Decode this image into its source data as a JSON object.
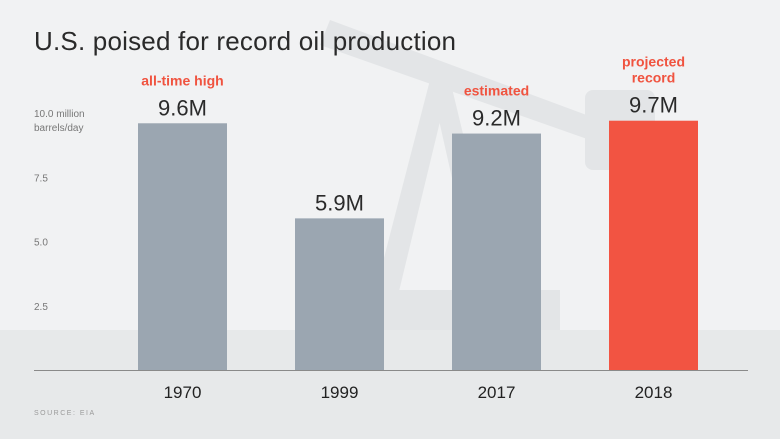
{
  "header": {
    "title": "U.S. poised for record oil production",
    "source": "SOURCE: EIA"
  },
  "colors": {
    "bar_default": "#9ba6b1",
    "bar_highlight": "#f25442",
    "annotation": "#f0533f"
  },
  "chart_data": {
    "type": "bar",
    "title": "U.S. poised for record oil production",
    "ylabel": "",
    "xlabel": "",
    "unit_label": [
      "10.0 million",
      "barrels/day"
    ],
    "ylim": [
      0,
      10
    ],
    "yticks": [
      2.5,
      5.0,
      7.5,
      10.0
    ],
    "ytick_labels": [
      "2.5",
      "5.0",
      "7.5",
      ""
    ],
    "categories": [
      "1970",
      "1999",
      "2017",
      "2018"
    ],
    "values": [
      9.6,
      5.9,
      9.2,
      9.7
    ],
    "value_labels": [
      "9.6M",
      "5.9M",
      "9.2M",
      "9.7M"
    ],
    "annotations": [
      [
        "all-time high"
      ],
      [],
      [
        "estimated"
      ],
      [
        "projected",
        "record"
      ]
    ],
    "highlight_index": 3,
    "grid": false
  }
}
